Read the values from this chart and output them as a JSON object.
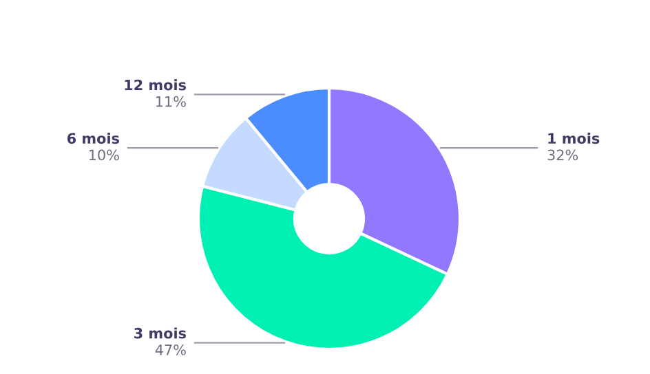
{
  "chart_data": {
    "type": "donut",
    "categories": [
      "1 mois",
      "3 mois",
      "6 mois",
      "12 mois"
    ],
    "values": [
      32,
      47,
      10,
      11
    ],
    "value_labels": [
      "32%",
      "47%",
      "10%",
      "11%"
    ],
    "colors": [
      "#9278ff",
      "#00f0b4",
      "#c4dbff",
      "#4b8dff"
    ],
    "legend": false
  }
}
